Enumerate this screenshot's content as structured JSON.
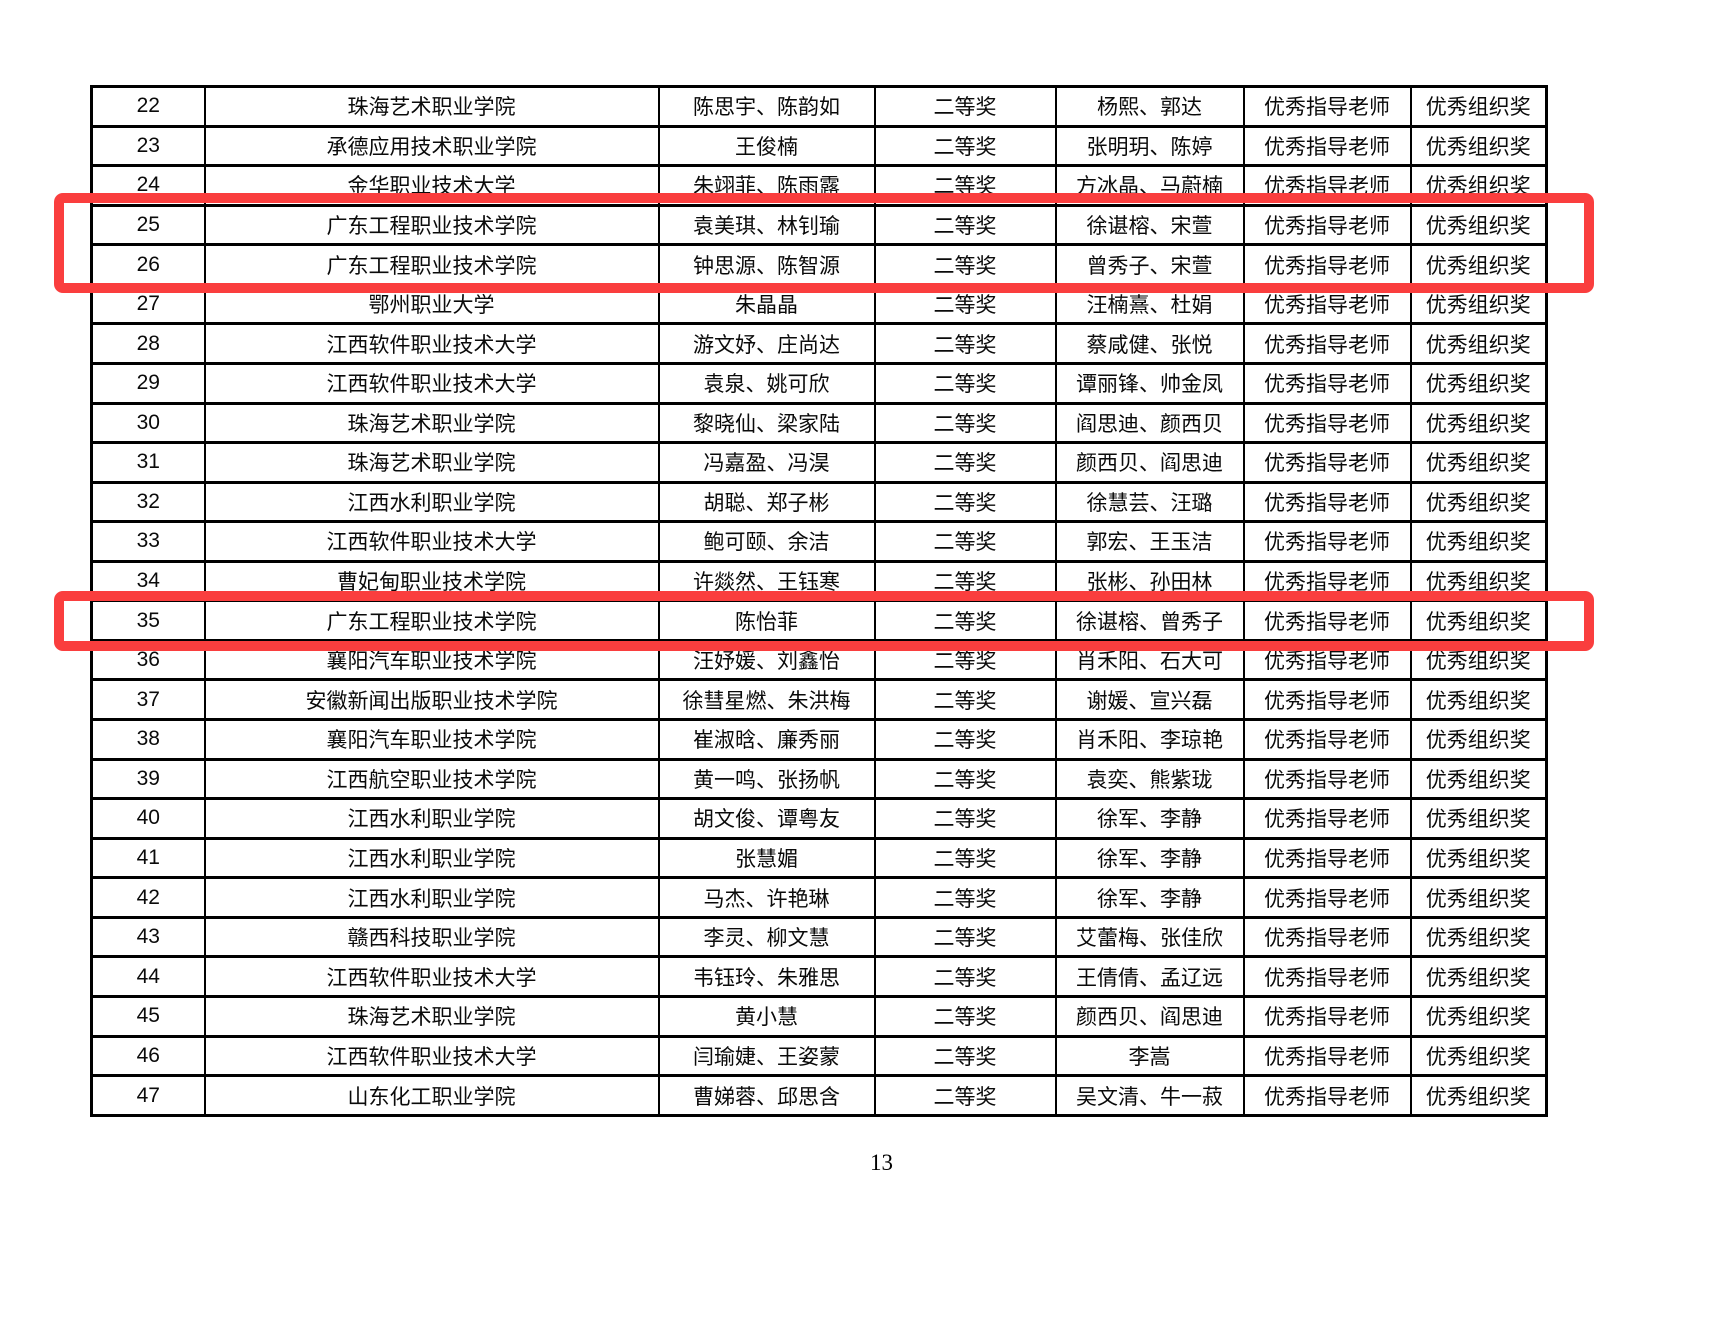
{
  "page": {
    "number": "13",
    "background_color": "#ffffff"
  },
  "annotations": {
    "highlight_color": "#fa3e3e",
    "boxes": [
      {
        "label": "highlight-rows-25-26",
        "rows": [
          "25",
          "26"
        ]
      },
      {
        "label": "highlight-row-35",
        "rows": [
          "35"
        ]
      }
    ]
  },
  "table": {
    "rows": [
      {
        "no": "22",
        "school": "珠海艺术职业学院",
        "students": "陈思宇、陈韵如",
        "award": "二等奖",
        "teachers": "杨熙、郭达",
        "instructor_award": "优秀指导老师",
        "organization_award": "优秀组织奖",
        "highlighted": false
      },
      {
        "no": "23",
        "school": "承德应用技术职业学院",
        "students": "王俊楠",
        "award": "二等奖",
        "teachers": "张明玥、陈婷",
        "instructor_award": "优秀指导老师",
        "organization_award": "优秀组织奖",
        "highlighted": false
      },
      {
        "no": "24",
        "school": "金华职业技术大学",
        "students": "朱翊菲、陈雨露",
        "award": "二等奖",
        "teachers": "方冰晶、马蔚楠",
        "instructor_award": "优秀指导老师",
        "organization_award": "优秀组织奖",
        "highlighted": false
      },
      {
        "no": "25",
        "school": "广东工程职业技术学院",
        "students": "袁美琪、林钊瑜",
        "award": "二等奖",
        "teachers": "徐谌榕、宋萱",
        "instructor_award": "优秀指导老师",
        "organization_award": "优秀组织奖",
        "highlighted": true
      },
      {
        "no": "26",
        "school": "广东工程职业技术学院",
        "students": "钟思源、陈智源",
        "award": "二等奖",
        "teachers": "曾秀子、宋萱",
        "instructor_award": "优秀指导老师",
        "organization_award": "优秀组织奖",
        "highlighted": true
      },
      {
        "no": "27",
        "school": "鄂州职业大学",
        "students": "朱晶晶",
        "award": "二等奖",
        "teachers": "汪楠熹、杜娟",
        "instructor_award": "优秀指导老师",
        "organization_award": "优秀组织奖",
        "highlighted": false
      },
      {
        "no": "28",
        "school": "江西软件职业技术大学",
        "students": "游文妤、庄尚达",
        "award": "二等奖",
        "teachers": "蔡咸健、张悦",
        "instructor_award": "优秀指导老师",
        "organization_award": "优秀组织奖",
        "highlighted": false
      },
      {
        "no": "29",
        "school": "江西软件职业技术大学",
        "students": "袁泉、姚可欣",
        "award": "二等奖",
        "teachers": "谭丽锋、帅金凤",
        "instructor_award": "优秀指导老师",
        "organization_award": "优秀组织奖",
        "highlighted": false
      },
      {
        "no": "30",
        "school": "珠海艺术职业学院",
        "students": "黎晓仙、梁家陆",
        "award": "二等奖",
        "teachers": "阎思迪、颜西贝",
        "instructor_award": "优秀指导老师",
        "organization_award": "优秀组织奖",
        "highlighted": false
      },
      {
        "no": "31",
        "school": "珠海艺术职业学院",
        "students": "冯嘉盈、冯淏",
        "award": "二等奖",
        "teachers": "颜西贝、阎思迪",
        "instructor_award": "优秀指导老师",
        "organization_award": "优秀组织奖",
        "highlighted": false
      },
      {
        "no": "32",
        "school": "江西水利职业学院",
        "students": "胡聪、郑子彬",
        "award": "二等奖",
        "teachers": "徐慧芸、汪璐",
        "instructor_award": "优秀指导老师",
        "organization_award": "优秀组织奖",
        "highlighted": false
      },
      {
        "no": "33",
        "school": "江西软件职业技术大学",
        "students": "鲍可颐、余洁",
        "award": "二等奖",
        "teachers": "郭宏、王玉洁",
        "instructor_award": "优秀指导老师",
        "organization_award": "优秀组织奖",
        "highlighted": false
      },
      {
        "no": "34",
        "school": "曹妃甸职业技术学院",
        "students": "许燚然、王钰寒",
        "award": "二等奖",
        "teachers": "张彬、孙田林",
        "instructor_award": "优秀指导老师",
        "organization_award": "优秀组织奖",
        "highlighted": false
      },
      {
        "no": "35",
        "school": "广东工程职业技术学院",
        "students": "陈怡菲",
        "award": "二等奖",
        "teachers": "徐谌榕、曾秀子",
        "instructor_award": "优秀指导老师",
        "organization_award": "优秀组织奖",
        "highlighted": true
      },
      {
        "no": "36",
        "school": "襄阳汽车职业技术学院",
        "students": "汪妤媛、刘鑫怡",
        "award": "二等奖",
        "teachers": "肖禾阳、石大可",
        "instructor_award": "优秀指导老师",
        "organization_award": "优秀组织奖",
        "highlighted": false
      },
      {
        "no": "37",
        "school": "安徽新闻出版职业技术学院",
        "students": "徐彗星燃、朱洪梅",
        "award": "二等奖",
        "teachers": "谢媛、宣兴磊",
        "instructor_award": "优秀指导老师",
        "organization_award": "优秀组织奖",
        "highlighted": false
      },
      {
        "no": "38",
        "school": "襄阳汽车职业技术学院",
        "students": "崔淑晗、廉秀丽",
        "award": "二等奖",
        "teachers": "肖禾阳、李琼艳",
        "instructor_award": "优秀指导老师",
        "organization_award": "优秀组织奖",
        "highlighted": false
      },
      {
        "no": "39",
        "school": "江西航空职业技术学院",
        "students": "黄一鸣、张扬帆",
        "award": "二等奖",
        "teachers": "袁奕、熊紫珑",
        "instructor_award": "优秀指导老师",
        "organization_award": "优秀组织奖",
        "highlighted": false
      },
      {
        "no": "40",
        "school": "江西水利职业学院",
        "students": "胡文俊、谭粤友",
        "award": "二等奖",
        "teachers": "徐军、李静",
        "instructor_award": "优秀指导老师",
        "organization_award": "优秀组织奖",
        "highlighted": false
      },
      {
        "no": "41",
        "school": "江西水利职业学院",
        "students": "张慧媚",
        "award": "二等奖",
        "teachers": "徐军、李静",
        "instructor_award": "优秀指导老师",
        "organization_award": "优秀组织奖",
        "highlighted": false
      },
      {
        "no": "42",
        "school": "江西水利职业学院",
        "students": "马杰、许艳琳",
        "award": "二等奖",
        "teachers": "徐军、李静",
        "instructor_award": "优秀指导老师",
        "organization_award": "优秀组织奖",
        "highlighted": false
      },
      {
        "no": "43",
        "school": "赣西科技职业学院",
        "students": "李灵、柳文慧",
        "award": "二等奖",
        "teachers": "艾蕾梅、张佳欣",
        "instructor_award": "优秀指导老师",
        "organization_award": "优秀组织奖",
        "highlighted": false
      },
      {
        "no": "44",
        "school": "江西软件职业技术大学",
        "students": "韦钰玲、朱雅思",
        "award": "二等奖",
        "teachers": "王倩倩、孟辽远",
        "instructor_award": "优秀指导老师",
        "organization_award": "优秀组织奖",
        "highlighted": false
      },
      {
        "no": "45",
        "school": "珠海艺术职业学院",
        "students": "黄小慧",
        "award": "二等奖",
        "teachers": "颜西贝、阎思迪",
        "instructor_award": "优秀指导老师",
        "organization_award": "优秀组织奖",
        "highlighted": false
      },
      {
        "no": "46",
        "school": "江西软件职业技术大学",
        "students": "闫瑜婕、王姿蒙",
        "award": "二等奖",
        "teachers": "李嵩",
        "instructor_award": "优秀指导老师",
        "organization_award": "优秀组织奖",
        "highlighted": false
      },
      {
        "no": "47",
        "school": "山东化工职业学院",
        "students": "曹娣蓉、邱思含",
        "award": "二等奖",
        "teachers": "吴文清、牛一菽",
        "instructor_award": "优秀指导老师",
        "organization_award": "优秀组织奖",
        "highlighted": false
      }
    ]
  }
}
